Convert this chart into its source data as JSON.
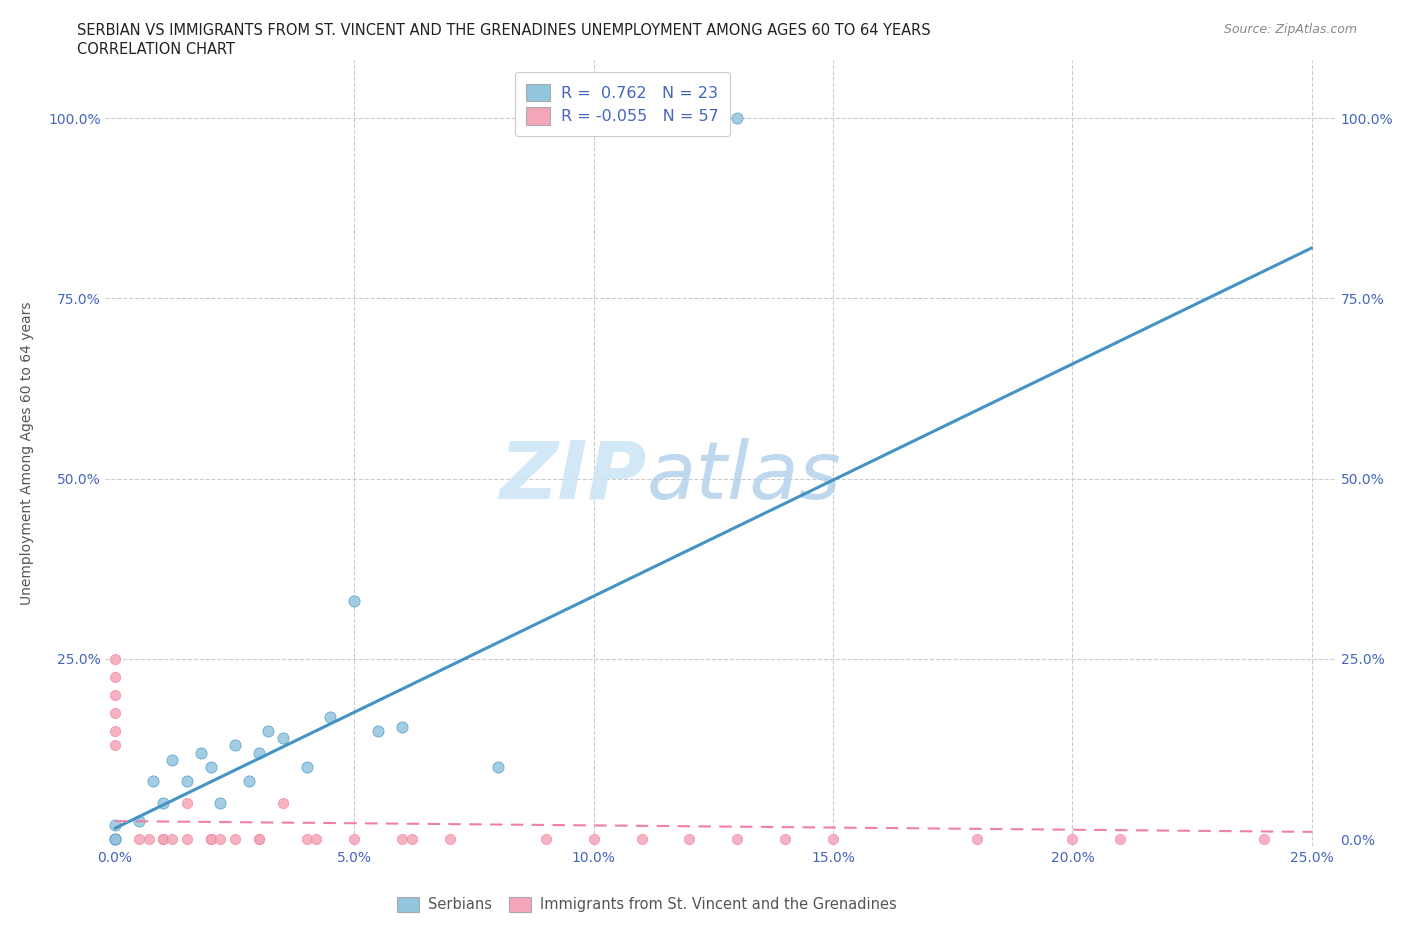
{
  "title_line1": "SERBIAN VS IMMIGRANTS FROM ST. VINCENT AND THE GRENADINES UNEMPLOYMENT AMONG AGES 60 TO 64 YEARS",
  "title_line2": "CORRELATION CHART",
  "source": "Source: ZipAtlas.com",
  "ylabel": "Unemployment Among Ages 60 to 64 years",
  "xlim": [
    -0.002,
    0.255
  ],
  "ylim": [
    -0.01,
    1.08
  ],
  "xticks": [
    0.0,
    0.05,
    0.1,
    0.15,
    0.2,
    0.25
  ],
  "yticks": [
    0.0,
    0.25,
    0.5,
    0.75,
    1.0
  ],
  "xticklabels": [
    "0.0%",
    "5.0%",
    "10.0%",
    "15.0%",
    "20.0%",
    "25.0%"
  ],
  "yticklabels_right": [
    "100.0%",
    "75.0%",
    "50.0%",
    "25.0%",
    "0.0%"
  ],
  "yticklabels_left": [
    "",
    "25.0%",
    "50.0%",
    "75.0%",
    "100.0%"
  ],
  "legend_r1": "R =  0.762   N = 23",
  "legend_r2": "R = -0.055   N = 57",
  "color_serbian": "#92C5DE",
  "color_immigrant": "#F4A6B8",
  "color_serbian_line": "#4393C3",
  "color_immigrant_line": "#F080A0",
  "serbian_x": [
    0.0,
    0.0,
    0.0,
    0.005,
    0.008,
    0.01,
    0.012,
    0.015,
    0.018,
    0.02,
    0.022,
    0.025,
    0.028,
    0.03,
    0.032,
    0.035,
    0.04,
    0.045,
    0.05,
    0.055,
    0.06,
    0.08,
    0.13
  ],
  "serbian_y": [
    0.0,
    0.02,
    0.0,
    0.025,
    0.08,
    0.05,
    0.11,
    0.08,
    0.12,
    0.1,
    0.05,
    0.13,
    0.08,
    0.12,
    0.15,
    0.14,
    0.1,
    0.17,
    0.33,
    0.15,
    0.155,
    0.1,
    1.0
  ],
  "serbian_line_x": [
    0.0,
    0.25
  ],
  "serbian_line_y": [
    0.015,
    0.82
  ],
  "immigrant_x": [
    0.0,
    0.0,
    0.0,
    0.0,
    0.0,
    0.0,
    0.0,
    0.0,
    0.0,
    0.0,
    0.0,
    0.0,
    0.0,
    0.0,
    0.0,
    0.0,
    0.0,
    0.0,
    0.0,
    0.0,
    0.0,
    0.0,
    0.0,
    0.0,
    0.0,
    0.005,
    0.007,
    0.01,
    0.01,
    0.012,
    0.015,
    0.015,
    0.02,
    0.02,
    0.02,
    0.022,
    0.025,
    0.03,
    0.03,
    0.035,
    0.04,
    0.042,
    0.05,
    0.06,
    0.062,
    0.07,
    0.09,
    0.1,
    0.11,
    0.12,
    0.13,
    0.14,
    0.15,
    0.18,
    0.2,
    0.21,
    0.24
  ],
  "immigrant_y": [
    0.0,
    0.0,
    0.0,
    0.0,
    0.0,
    0.0,
    0.0,
    0.0,
    0.0,
    0.0,
    0.0,
    0.0,
    0.0,
    0.0,
    0.0,
    0.0,
    0.0,
    0.0,
    0.0,
    0.13,
    0.15,
    0.175,
    0.2,
    0.225,
    0.25,
    0.0,
    0.0,
    0.0,
    0.0,
    0.0,
    0.0,
    0.05,
    0.0,
    0.0,
    0.0,
    0.0,
    0.0,
    0.0,
    0.0,
    0.05,
    0.0,
    0.0,
    0.0,
    0.0,
    0.0,
    0.0,
    0.0,
    0.0,
    0.0,
    0.0,
    0.0,
    0.0,
    0.0,
    0.0,
    0.0,
    0.0,
    0.0
  ],
  "immigrant_line_x": [
    0.0,
    0.25
  ],
  "immigrant_line_y": [
    0.025,
    0.01
  ]
}
